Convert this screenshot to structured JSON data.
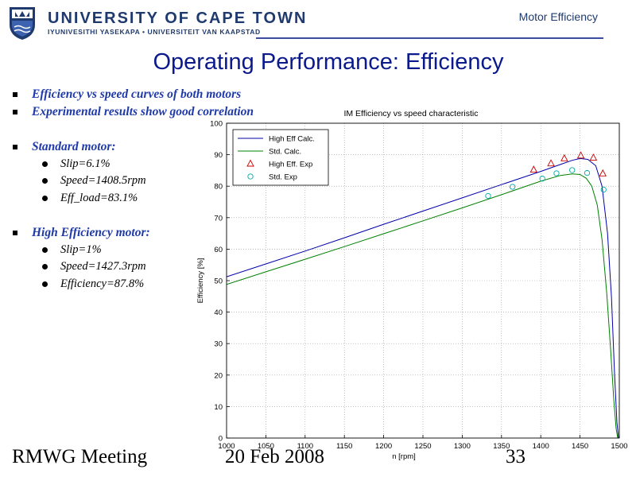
{
  "header": {
    "university": "UNIVERSITY OF CAPE TOWN",
    "subtitle": "IYUNIVESITHI YASEKAPA • UNIVERSITEIT VAN KAAPSTAD",
    "topic": "Motor Efficiency"
  },
  "slide_title": "Operating Performance: Efficiency",
  "bullets": {
    "intro": [
      "Efficiency vs speed curves of both motors",
      "Experimental results show good correlation"
    ],
    "standard_heading": "Standard motor:",
    "standard_items": [
      "Slip=6.1%",
      "Speed=1408.5rpm",
      "Eff_load=83.1%"
    ],
    "high_heading": "High Efficiency motor:",
    "high_items": [
      "Slip=1%",
      "Speed=1427.3rpm",
      "Efficiency=87.8%"
    ]
  },
  "footer": {
    "meeting": "RMWG Meeting",
    "date": "20 Feb 2008",
    "page": "33"
  },
  "colors": {
    "brand": "#1f3a6e",
    "title": "#0a1a8c",
    "high_eff": "#0000aa",
    "standard": "#008000",
    "high_exp": "#cc0000",
    "std_exp": "#00aaaa"
  },
  "chart_data": {
    "type": "line",
    "title": "IM Efficiency vs speed characteristic",
    "xlabel": "n [rpm]",
    "ylabel": "Efficiency [%]",
    "xlim": [
      1000,
      1500
    ],
    "ylim": [
      0,
      100
    ],
    "xticks": [
      1000,
      1050,
      1100,
      1150,
      1200,
      1250,
      1300,
      1350,
      1400,
      1450,
      1500
    ],
    "yticks": [
      0,
      10,
      20,
      30,
      40,
      50,
      60,
      70,
      80,
      90,
      100
    ],
    "grid": true,
    "legend_position": "top-left",
    "series": [
      {
        "name": "High Eff Calc.",
        "style": "line",
        "x": [
          1000,
          1050,
          1100,
          1150,
          1200,
          1250,
          1300,
          1350,
          1400,
          1425,
          1440,
          1450,
          1460,
          1470,
          1478,
          1485,
          1490,
          1494,
          1497,
          1499
        ],
        "y": [
          51.2,
          55.3,
          59.4,
          63.6,
          67.9,
          72.1,
          76.3,
          80.5,
          84.7,
          86.9,
          88.2,
          88.8,
          88.5,
          86.5,
          80,
          65,
          45,
          20,
          5,
          0
        ]
      },
      {
        "name": "Std. Calc.",
        "style": "line",
        "x": [
          1000,
          1050,
          1100,
          1150,
          1200,
          1250,
          1300,
          1350,
          1400,
          1425,
          1440,
          1450,
          1458,
          1465,
          1472,
          1478,
          1484,
          1489,
          1493,
          1496,
          1498
        ],
        "y": [
          48.8,
          52.8,
          56.8,
          60.8,
          64.9,
          69.0,
          73.1,
          77.3,
          81.6,
          83.4,
          83.9,
          83.7,
          82.5,
          80,
          74,
          63,
          46,
          28,
          12,
          3,
          0
        ]
      },
      {
        "name": "High Eff. Exp",
        "style": "triangle",
        "x": [
          1391,
          1413,
          1430,
          1451,
          1467,
          1479
        ],
        "y": [
          85.2,
          87.2,
          88.8,
          89.7,
          89.0,
          84.0
        ]
      },
      {
        "name": "Std. Exp",
        "style": "circle",
        "x": [
          1333,
          1364,
          1402,
          1420,
          1440,
          1459,
          1480
        ],
        "y": [
          76.9,
          79.8,
          82.4,
          84.1,
          85.1,
          84.2,
          78.9
        ]
      }
    ]
  }
}
